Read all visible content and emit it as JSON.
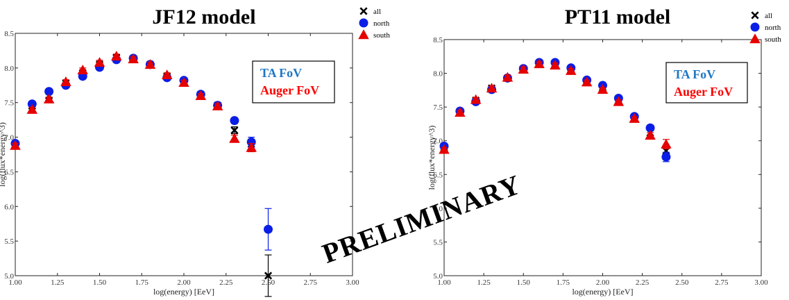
{
  "watermark": "PRELIMINARY",
  "chart_data": [
    {
      "type": "scatter",
      "title": "JF12 model",
      "xlabel": "log(energy) [EeV]",
      "ylabel": "log(flux*energy^3)",
      "xlim": [
        1.0,
        3.0
      ],
      "ylim": [
        5.0,
        8.5
      ],
      "xticks": [
        "1.00",
        "1.25",
        "1.50",
        "1.75",
        "2.00",
        "2.25",
        "2.50",
        "2.75",
        "3.00"
      ],
      "yticks": [
        "5.0",
        "5.5",
        "6.0",
        "6.5",
        "7.0",
        "7.5",
        "8.0",
        "8.5"
      ],
      "legend": {
        "placement": "outside top-right",
        "entries": [
          "all",
          "north",
          "south"
        ]
      },
      "fov_box": {
        "ta": "TA FoV",
        "auger": "Auger FoV"
      },
      "colors": {
        "all": "#000000",
        "north": "#0a1ee6",
        "south": "#e60000",
        "ta_text": "#1f77c4",
        "auger_text": "#ff0000"
      },
      "series": [
        {
          "name": "all",
          "marker": "x",
          "x": [
            1.0,
            1.1,
            1.2,
            1.3,
            1.4,
            1.5,
            1.6,
            1.7,
            1.8,
            1.9,
            2.0,
            2.1,
            2.2,
            2.3,
            2.4,
            2.5
          ],
          "y": [
            6.9,
            7.45,
            7.6,
            7.78,
            7.93,
            8.05,
            8.15,
            8.13,
            8.05,
            7.88,
            7.8,
            7.6,
            7.46,
            7.1,
            6.9,
            5.0
          ],
          "err": [
            0.03,
            0.03,
            0.03,
            0.03,
            0.03,
            0.03,
            0.03,
            0.03,
            0.03,
            0.03,
            0.03,
            0.03,
            0.03,
            0.05,
            0.07,
            0.3
          ]
        },
        {
          "name": "north",
          "marker": "circle",
          "x": [
            1.0,
            1.1,
            1.2,
            1.3,
            1.4,
            1.5,
            1.6,
            1.7,
            1.8,
            1.9,
            2.0,
            2.1,
            2.2,
            2.3,
            2.4,
            2.5
          ],
          "y": [
            6.91,
            7.48,
            7.66,
            7.75,
            7.88,
            8.01,
            8.12,
            8.14,
            8.05,
            7.86,
            7.82,
            7.62,
            7.46,
            7.24,
            6.93,
            5.67
          ],
          "err": [
            0.03,
            0.03,
            0.03,
            0.03,
            0.03,
            0.03,
            0.03,
            0.03,
            0.03,
            0.03,
            0.03,
            0.03,
            0.03,
            0.04,
            0.07,
            0.3
          ]
        },
        {
          "name": "south",
          "marker": "triangle",
          "x": [
            1.0,
            1.1,
            1.2,
            1.3,
            1.4,
            1.5,
            1.6,
            1.7,
            1.8,
            1.9,
            2.0,
            2.1,
            2.2,
            2.3,
            2.4
          ],
          "y": [
            6.88,
            7.4,
            7.55,
            7.8,
            7.97,
            8.08,
            8.17,
            8.13,
            8.05,
            7.9,
            7.79,
            7.6,
            7.45,
            6.98,
            6.85
          ],
          "err": [
            0.03,
            0.03,
            0.03,
            0.03,
            0.03,
            0.03,
            0.03,
            0.03,
            0.03,
            0.03,
            0.03,
            0.03,
            0.03,
            0.05,
            0.06
          ]
        }
      ]
    },
    {
      "type": "scatter",
      "title": "PT11 model",
      "xlabel": "log(energy) [EeV]",
      "ylabel": "log(flux*energy^3)",
      "xlim": [
        1.0,
        3.0
      ],
      "ylim": [
        5.0,
        8.5
      ],
      "xticks": [
        "1.00",
        "1.25",
        "1.50",
        "1.75",
        "2.00",
        "2.25",
        "2.50",
        "2.75",
        "3.00"
      ],
      "yticks": [
        "5.0",
        "5.5",
        "6.0",
        "6.5",
        "7.0",
        "7.5",
        "8.0",
        "8.5"
      ],
      "legend": {
        "placement": "outside top-right",
        "entries": [
          "all",
          "north",
          "south"
        ]
      },
      "fov_box": {
        "ta": "TA FoV",
        "auger": "Auger FoV"
      },
      "colors": {
        "all": "#000000",
        "north": "#0a1ee6",
        "south": "#e60000",
        "ta_text": "#1f77c4",
        "auger_text": "#ff0000"
      },
      "series": [
        {
          "name": "all",
          "marker": "x",
          "x": [
            1.0,
            1.1,
            1.2,
            1.3,
            1.4,
            1.5,
            1.6,
            1.7,
            1.8,
            1.9,
            2.0,
            2.1,
            2.2,
            2.3,
            2.4
          ],
          "y": [
            6.9,
            7.43,
            7.6,
            7.78,
            7.93,
            8.05,
            8.15,
            8.14,
            8.06,
            7.88,
            7.79,
            7.6,
            7.34,
            7.12,
            6.85
          ],
          "err": [
            0.03,
            0.03,
            0.03,
            0.03,
            0.03,
            0.03,
            0.03,
            0.03,
            0.03,
            0.03,
            0.03,
            0.03,
            0.03,
            0.04,
            0.07
          ]
        },
        {
          "name": "north",
          "marker": "circle",
          "x": [
            1.0,
            1.1,
            1.2,
            1.3,
            1.4,
            1.5,
            1.6,
            1.7,
            1.8,
            1.9,
            2.0,
            2.1,
            2.2,
            2.3,
            2.4
          ],
          "y": [
            6.92,
            7.44,
            7.58,
            7.76,
            7.93,
            8.07,
            8.16,
            8.16,
            8.08,
            7.9,
            7.82,
            7.63,
            7.36,
            7.19,
            6.76
          ],
          "err": [
            0.03,
            0.03,
            0.03,
            0.03,
            0.03,
            0.03,
            0.03,
            0.03,
            0.03,
            0.03,
            0.03,
            0.03,
            0.03,
            0.04,
            0.07
          ]
        },
        {
          "name": "south",
          "marker": "triangle",
          "x": [
            1.0,
            1.1,
            1.2,
            1.3,
            1.4,
            1.5,
            1.6,
            1.7,
            1.8,
            1.9,
            2.0,
            2.1,
            2.2,
            2.3,
            2.4
          ],
          "y": [
            6.87,
            7.42,
            7.61,
            7.78,
            7.94,
            8.06,
            8.14,
            8.12,
            8.04,
            7.87,
            7.76,
            7.58,
            7.33,
            7.08,
            6.95
          ],
          "err": [
            0.03,
            0.03,
            0.03,
            0.03,
            0.03,
            0.03,
            0.03,
            0.03,
            0.03,
            0.03,
            0.03,
            0.03,
            0.03,
            0.04,
            0.07
          ]
        }
      ]
    }
  ]
}
